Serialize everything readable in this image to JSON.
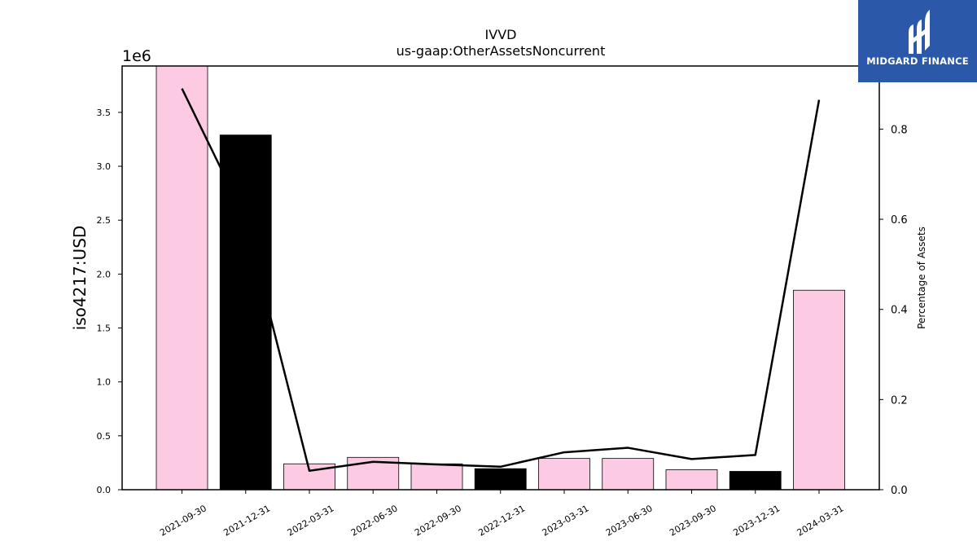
{
  "chart_data": {
    "type": "bar",
    "title": "IVVD",
    "subtitle": "us-gaap:OtherAssetsNoncurrent",
    "ylabel": "iso4217:USD",
    "y2label": "Percentage of Assets",
    "y_offset_label": "1e6",
    "ylim": [
      0,
      3930000
    ],
    "y2lim": [
      0,
      0.94
    ],
    "y_ticks": [
      "0.0",
      "0.5",
      "1.0",
      "1.5",
      "2.0",
      "2.5",
      "3.0",
      "3.5"
    ],
    "y2_ticks": [
      "0.0",
      "0.2",
      "0.4",
      "0.6",
      "0.8"
    ],
    "categories": [
      "2021-09-30",
      "2021-12-31",
      "2022-03-31",
      "2022-06-30",
      "2022-09-30",
      "2022-12-31",
      "2023-03-31",
      "2023-06-30",
      "2023-09-30",
      "2023-12-31",
      "2024-03-31"
    ],
    "series": [
      {
        "kind": "bar",
        "values": [
          3930000,
          3290000,
          240000,
          300000,
          240000,
          195000,
          290000,
          290000,
          185000,
          170000,
          1850000
        ],
        "colors": [
          "#fccae3",
          "#000000",
          "#fccae3",
          "#fccae3",
          "#fccae3",
          "#000000",
          "#fccae3",
          "#fccae3",
          "#fccae3",
          "#000000",
          "#fccae3"
        ]
      },
      {
        "kind": "line",
        "axis": "right",
        "values": [
          0.89,
          0.6,
          0.042,
          0.062,
          0.056,
          0.051,
          0.083,
          0.093,
          0.068,
          0.077,
          0.865
        ],
        "color": "#000000"
      }
    ]
  },
  "logo": {
    "text": "MIDGARD FINANCE",
    "background": "#2b58a8",
    "icon": "midgard-logo-icon"
  }
}
